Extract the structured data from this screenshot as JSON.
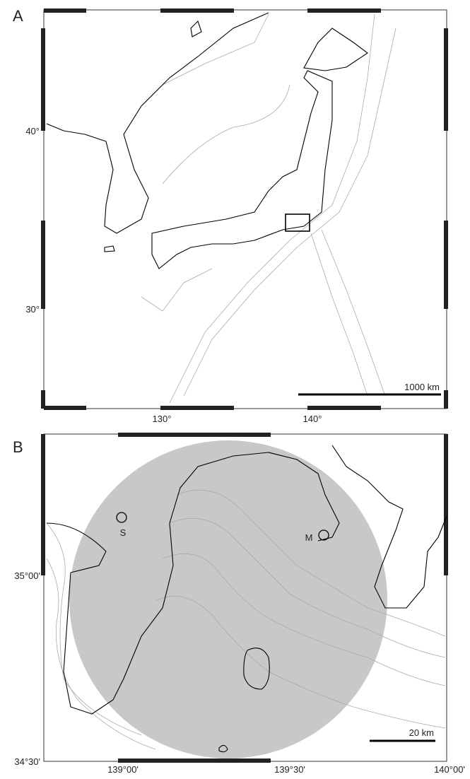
{
  "panels": [
    {
      "label": "A",
      "lat_labels": [
        "40°",
        "30°"
      ],
      "lon_labels": [
        "130°",
        "140°"
      ],
      "scale_bar": "1000 km"
    },
    {
      "label": "B",
      "lat_labels": [
        "35°00'",
        "34°30'"
      ],
      "lon_labels": [
        "139°00'",
        "139°30'",
        "140°00'"
      ],
      "scale_bar": "20 km",
      "sites": [
        "M",
        "S"
      ]
    }
  ]
}
